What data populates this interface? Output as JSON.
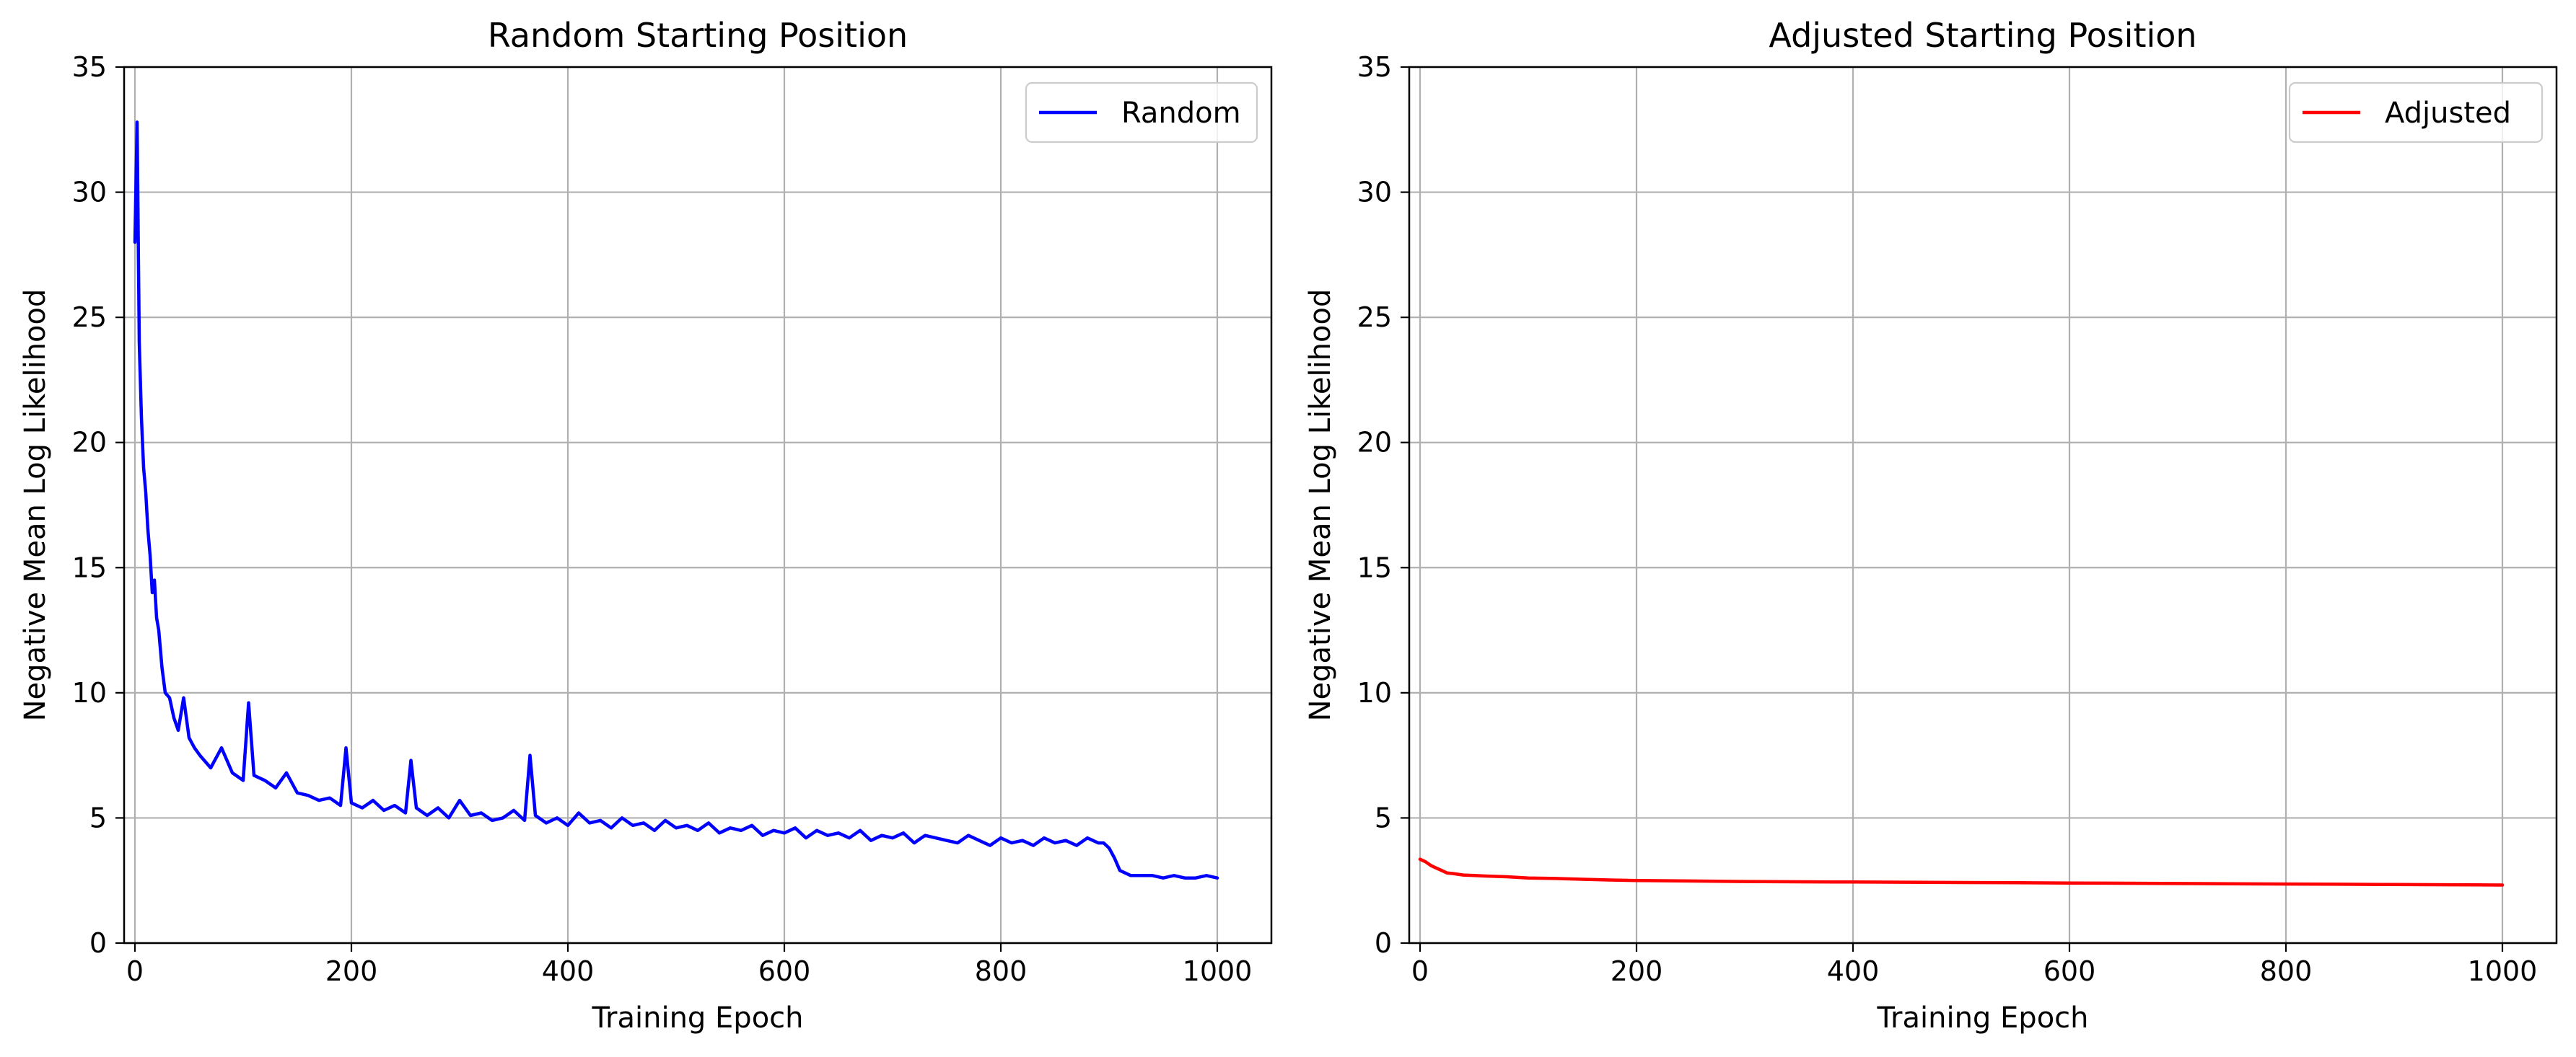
{
  "chart_data": [
    {
      "type": "line",
      "title": "Random Starting Position",
      "xlabel": "Training Epoch",
      "ylabel": "Negative Mean Log Likelihood",
      "xlim": [
        -10,
        1050
      ],
      "ylim": [
        0,
        35
      ],
      "xticks": [
        0,
        200,
        400,
        600,
        800,
        1000
      ],
      "yticks": [
        0,
        5,
        10,
        15,
        20,
        25,
        30,
        35
      ],
      "xtick_labels": [
        "0",
        "200",
        "400",
        "600",
        "800",
        "1000"
      ],
      "ytick_labels": [
        "0",
        "5",
        "10",
        "15",
        "20",
        "25",
        "30",
        "35"
      ],
      "grid": true,
      "legend": "top-right",
      "series": [
        {
          "name": "Random",
          "color": "#0000ff",
          "x": [
            0,
            2,
            4,
            6,
            8,
            10,
            12,
            14,
            16,
            18,
            20,
            22,
            25,
            28,
            32,
            36,
            40,
            45,
            50,
            55,
            60,
            70,
            80,
            90,
            100,
            105,
            110,
            120,
            130,
            140,
            150,
            160,
            170,
            180,
            190,
            195,
            200,
            210,
            220,
            230,
            240,
            250,
            255,
            260,
            270,
            280,
            290,
            300,
            310,
            320,
            330,
            340,
            350,
            360,
            365,
            370,
            380,
            390,
            400,
            410,
            420,
            430,
            440,
            450,
            460,
            470,
            480,
            490,
            500,
            510,
            520,
            530,
            540,
            550,
            560,
            570,
            580,
            590,
            600,
            610,
            620,
            630,
            640,
            650,
            660,
            670,
            680,
            690,
            700,
            710,
            720,
            730,
            740,
            750,
            760,
            770,
            780,
            790,
            800,
            810,
            820,
            830,
            840,
            850,
            860,
            870,
            880,
            890,
            895,
            900,
            905,
            910,
            915,
            920,
            930,
            940,
            950,
            960,
            970,
            980,
            990,
            1000
          ],
          "y": [
            28.0,
            32.8,
            24.0,
            21.0,
            19.0,
            18.0,
            16.5,
            15.5,
            14.0,
            14.5,
            13.0,
            12.5,
            11.0,
            10.0,
            9.8,
            9.0,
            8.5,
            9.8,
            8.2,
            7.8,
            7.5,
            7.0,
            7.8,
            6.8,
            6.5,
            9.6,
            6.7,
            6.5,
            6.2,
            6.8,
            6.0,
            5.9,
            5.7,
            5.8,
            5.5,
            7.8,
            5.6,
            5.4,
            5.7,
            5.3,
            5.5,
            5.2,
            7.3,
            5.4,
            5.1,
            5.4,
            5.0,
            5.7,
            5.1,
            5.2,
            4.9,
            5.0,
            5.3,
            4.9,
            7.5,
            5.1,
            4.8,
            5.0,
            4.7,
            5.2,
            4.8,
            4.9,
            4.6,
            5.0,
            4.7,
            4.8,
            4.5,
            4.9,
            4.6,
            4.7,
            4.5,
            4.8,
            4.4,
            4.6,
            4.5,
            4.7,
            4.3,
            4.5,
            4.4,
            4.6,
            4.2,
            4.5,
            4.3,
            4.4,
            4.2,
            4.5,
            4.1,
            4.3,
            4.2,
            4.4,
            4.0,
            4.3,
            4.2,
            4.1,
            4.0,
            4.3,
            4.1,
            3.9,
            4.2,
            4.0,
            4.1,
            3.9,
            4.2,
            4.0,
            4.1,
            3.9,
            4.2,
            4.0,
            4.0,
            3.8,
            3.4,
            2.9,
            2.8,
            2.7,
            2.7,
            2.7,
            2.6,
            2.7,
            2.6,
            2.6,
            2.7,
            2.6
          ]
        }
      ]
    },
    {
      "type": "line",
      "title": "Adjusted Starting Position",
      "xlabel": "Training Epoch",
      "ylabel": "Negative Mean Log Likelihood",
      "xlim": [
        -10,
        1050
      ],
      "ylim": [
        0,
        35
      ],
      "xticks": [
        0,
        200,
        400,
        600,
        800,
        1000
      ],
      "yticks": [
        0,
        5,
        10,
        15,
        20,
        25,
        30,
        35
      ],
      "xtick_labels": [
        "0",
        "200",
        "400",
        "600",
        "800",
        "1000"
      ],
      "ytick_labels": [
        "0",
        "5",
        "10",
        "15",
        "20",
        "25",
        "30",
        "35"
      ],
      "grid": true,
      "legend": "top-right",
      "series": [
        {
          "name": "Adjusted",
          "color": "#ff0000",
          "x": [
            0,
            5,
            10,
            15,
            20,
            25,
            30,
            40,
            50,
            60,
            80,
            100,
            125,
            150,
            175,
            200,
            250,
            300,
            350,
            400,
            450,
            500,
            550,
            600,
            650,
            700,
            750,
            800,
            850,
            900,
            950,
            1000
          ],
          "y": [
            3.35,
            3.25,
            3.1,
            3.0,
            2.9,
            2.8,
            2.78,
            2.72,
            2.7,
            2.68,
            2.65,
            2.6,
            2.58,
            2.55,
            2.52,
            2.5,
            2.48,
            2.46,
            2.45,
            2.44,
            2.43,
            2.42,
            2.41,
            2.4,
            2.39,
            2.38,
            2.37,
            2.36,
            2.35,
            2.34,
            2.33,
            2.32
          ]
        }
      ]
    }
  ]
}
